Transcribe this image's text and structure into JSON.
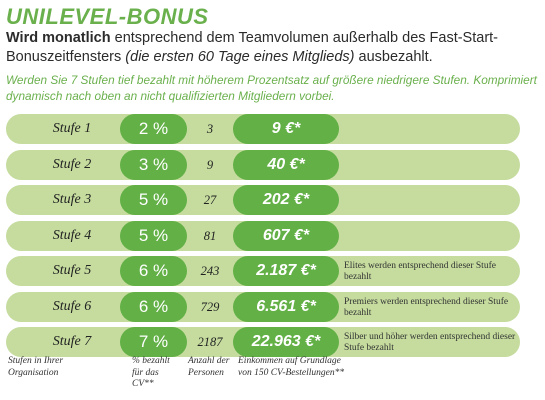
{
  "title": "UNILEVEL-BONUS",
  "intro": {
    "bold": "Wird monatlich",
    "text": " entsprechend dem Teamvolumen außerhalb des Fast-Start-Bonuszeitfensters ",
    "italic": "(die ersten 60 Tage eines Mitglieds)",
    "tail": " ausbezahlt."
  },
  "note": "Werden Sie 7 Stufen tief bezahlt mit höherem Prozentsatz auf größere niedrigere Stufen. Komprimiert dynamisch nach oben an nicht qualifizierten Mitgliedern vorbei.",
  "rows": [
    {
      "stufe": "Stufe 1",
      "pct": "2 %",
      "anzahl": "3",
      "einkommen": "9 €*",
      "note": ""
    },
    {
      "stufe": "Stufe 2",
      "pct": "3 %",
      "anzahl": "9",
      "einkommen": "40 €*",
      "note": ""
    },
    {
      "stufe": "Stufe 3",
      "pct": "5 %",
      "anzahl": "27",
      "einkommen": "202 €*",
      "note": ""
    },
    {
      "stufe": "Stufe 4",
      "pct": "5 %",
      "anzahl": "81",
      "einkommen": "607 €*",
      "note": ""
    },
    {
      "stufe": "Stufe 5",
      "pct": "6 %",
      "anzahl": "243",
      "einkommen": "2.187 €*",
      "note": "Elites werden entsprechend dieser Stufe bezahlt"
    },
    {
      "stufe": "Stufe 6",
      "pct": "6 %",
      "anzahl": "729",
      "einkommen": "6.561 €*",
      "note": "Premiers werden entsprechend dieser Stufe bezahlt"
    },
    {
      "stufe": "Stufe 7",
      "pct": "7 %",
      "anzahl": "2187",
      "einkommen": "22.963 €*",
      "note": "Silber und höher werden entsprechend dieser Stufe bezahlt"
    }
  ],
  "footer": {
    "col1": "Stufen in Ihrer Organisation",
    "col2": "% bezahlt für das CV**",
    "col3": "Anzahl der Personen",
    "col4": "Einkommen auf Grundlage von 150 CV-Bestellungen**"
  },
  "colors": {
    "accent": "#6ab04c",
    "pill": "#62b046",
    "row_background": "#c5dc9e"
  }
}
